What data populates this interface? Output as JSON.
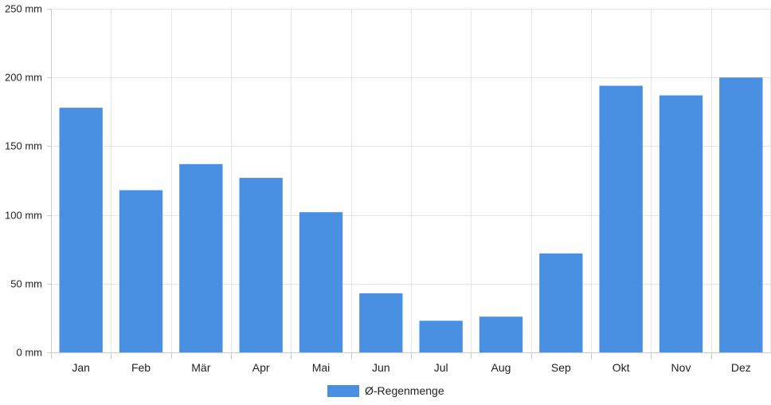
{
  "chart_data": {
    "type": "bar",
    "categories": [
      "Jan",
      "Feb",
      "Mär",
      "Apr",
      "Mai",
      "Jun",
      "Jul",
      "Aug",
      "Sep",
      "Okt",
      "Nov",
      "Dez"
    ],
    "series": [
      {
        "name": "Ø-Regenmenge",
        "color": "#4a90e2",
        "values": [
          178,
          118,
          137,
          127,
          102,
          43,
          23,
          26,
          72,
          194,
          187,
          200
        ]
      }
    ],
    "title": "",
    "xlabel": "",
    "ylabel": "",
    "ylim": [
      0,
      250
    ],
    "y_ticks": [
      0,
      50,
      100,
      150,
      200,
      250
    ],
    "y_tick_labels": [
      "0 mm",
      "50 mm",
      "100 mm",
      "150 mm",
      "200 mm",
      "250 mm"
    ],
    "y_unit": "mm",
    "grid": true,
    "legend_position": "bottom-center"
  }
}
